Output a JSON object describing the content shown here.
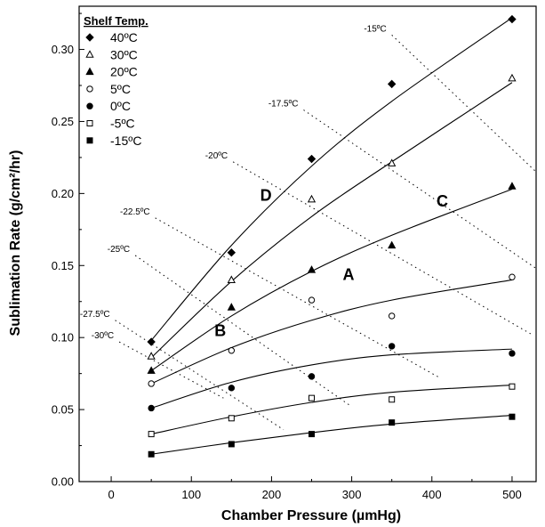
{
  "chart_data": {
    "type": "scatter",
    "xlabel": "Chamber Pressure (µmHg)",
    "ylabel": "Sublimation Rate (g/cm²/hr)",
    "xlim": [
      -40,
      530
    ],
    "ylim": [
      0.0,
      0.33
    ],
    "xticks": [
      0,
      100,
      200,
      300,
      400,
      500
    ],
    "yticks": [
      0.0,
      0.05,
      0.1,
      0.15,
      0.2,
      0.25,
      0.3
    ],
    "ytick_labels": [
      "0.00",
      "0.05",
      "0.10",
      "0.15",
      "0.20",
      "0.25",
      "0.30"
    ],
    "legend": {
      "title": "Shelf Temp.",
      "placement": "top-left"
    },
    "series": [
      {
        "name": "40ºC",
        "marker": "diamond-filled",
        "x": [
          50,
          150,
          250,
          350,
          500
        ],
        "y": [
          0.097,
          0.159,
          0.224,
          0.276,
          0.321
        ],
        "fit": [
          0.098,
          0.164,
          0.219,
          0.264,
          0.322
        ]
      },
      {
        "name": "30ºC",
        "marker": "triangle-open",
        "x": [
          50,
          150,
          250,
          350,
          500
        ],
        "y": [
          0.087,
          0.14,
          0.196,
          0.221,
          0.28
        ],
        "fit": [
          0.086,
          0.139,
          0.184,
          0.222,
          0.277
        ]
      },
      {
        "name": "20ºC",
        "marker": "triangle-filled",
        "x": [
          50,
          150,
          250,
          350,
          500
        ],
        "y": [
          0.077,
          0.121,
          0.147,
          0.164,
          0.205
        ],
        "fit": [
          0.077,
          0.115,
          0.146,
          0.171,
          0.203
        ]
      },
      {
        "name": "5ºC",
        "marker": "circle-open",
        "x": [
          50,
          150,
          250,
          350,
          500
        ],
        "y": [
          0.068,
          0.091,
          0.126,
          0.115,
          0.142
        ],
        "fit": [
          0.068,
          0.093,
          0.112,
          0.126,
          0.14
        ]
      },
      {
        "name": "0ºC",
        "marker": "circle-filled",
        "x": [
          50,
          150,
          250,
          350,
          500
        ],
        "y": [
          0.051,
          0.065,
          0.073,
          0.094,
          0.089
        ],
        "fit": [
          0.051,
          0.069,
          0.081,
          0.088,
          0.092
        ]
      },
      {
        "name": "-5ºC",
        "marker": "square-open",
        "x": [
          50,
          150,
          250,
          350,
          500
        ],
        "y": [
          0.033,
          0.044,
          0.058,
          0.057,
          0.066
        ],
        "fit": [
          0.033,
          0.045,
          0.055,
          0.062,
          0.067
        ]
      },
      {
        "name": "-15ºC",
        "marker": "square-filled",
        "x": [
          50,
          150,
          250,
          350,
          500
        ],
        "y": [
          0.019,
          0.026,
          0.033,
          0.041,
          0.045
        ],
        "fit": [
          0.019,
          0.027,
          0.034,
          0.04,
          0.046
        ]
      }
    ],
    "isotherms": [
      {
        "label": "-15ºC",
        "from": [
          350,
          0.31
        ],
        "to": [
          530,
          0.215
        ]
      },
      {
        "label": "-17.5ºC",
        "from": [
          240,
          0.258
        ],
        "to": [
          530,
          0.148
        ]
      },
      {
        "label": "-20ºC",
        "from": [
          152,
          0.222
        ],
        "to": [
          525,
          0.102
        ]
      },
      {
        "label": "-22.5ºC",
        "from": [
          55,
          0.183
        ],
        "to": [
          410,
          0.072
        ]
      },
      {
        "label": "-25ºC",
        "from": [
          30,
          0.157
        ],
        "to": [
          300,
          0.052
        ]
      },
      {
        "label": "-27.5ºC",
        "from": [
          5,
          0.112
        ],
        "to": [
          215,
          0.036
        ]
      },
      {
        "label": "-30ºC",
        "from": [
          10,
          0.097
        ],
        "to": [
          140,
          0.058
        ]
      }
    ],
    "annotations": [
      {
        "text": "D",
        "x": 193,
        "y": 0.195
      },
      {
        "text": "A",
        "x": 296,
        "y": 0.14
      },
      {
        "text": "C",
        "x": 413,
        "y": 0.191
      },
      {
        "text": "B",
        "x": 136,
        "y": 0.101
      }
    ]
  }
}
